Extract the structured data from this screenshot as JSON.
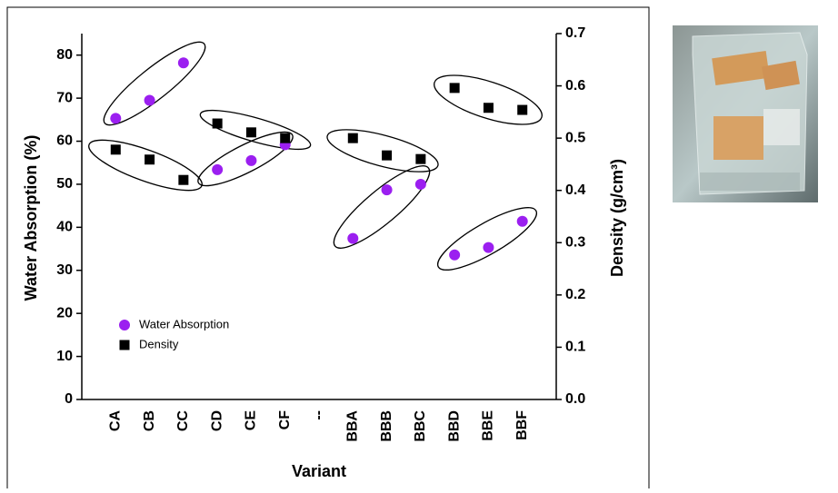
{
  "chart_data": {
    "type": "scatter",
    "xlabel": "Variant",
    "ylabel": "Water Absorption (%)",
    "y2label": "Density (g/cm³)",
    "categories": [
      "CA",
      "CB",
      "CC",
      "CD",
      "CE",
      "CF",
      "--",
      "BBA",
      "BBB",
      "BBC",
      "BBD",
      "BBE",
      "BBF"
    ],
    "series": [
      {
        "name": "Water Absorption",
        "color": "#9b1ff0",
        "marker": "circle",
        "values": [
          65.3,
          69.5,
          78.2,
          53.4,
          55.5,
          59.2,
          null,
          37.4,
          48.7,
          50.0,
          33.6,
          35.3,
          41.4
        ]
      },
      {
        "name": "Density",
        "color": "#000000",
        "marker": "square",
        "axis": "y2",
        "values": [
          0.478,
          0.459,
          0.42,
          0.528,
          0.511,
          0.5,
          null,
          0.5,
          0.467,
          0.46,
          0.596,
          0.558,
          0.554
        ]
      }
    ],
    "ylim": [
      0,
      85
    ],
    "yticks": [
      0,
      10,
      20,
      30,
      40,
      50,
      60,
      70,
      80
    ],
    "y2lim": [
      0,
      0.7
    ],
    "y2ticks": [
      {
        "value": 0,
        "label": "0.0"
      },
      0.1,
      0.2,
      0.3,
      0.4,
      0.5,
      0.6,
      0.7
    ],
    "legend": "lower left",
    "grid": false
  }
}
